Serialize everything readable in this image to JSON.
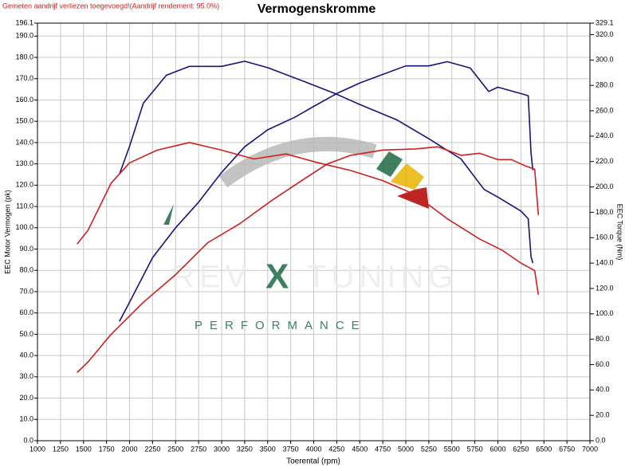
{
  "chart_data": {
    "type": "line",
    "title": "Vermogenskromme",
    "subtitle": "Gemeten aandrijf verliezen toegevoegd!(Aandrijf rendement: 95.0%)",
    "xlabel": "Toerental (rpm)",
    "ylabel": "EEC Motor Vermogen (pk)",
    "y2label": "EEC Torque (Nm)",
    "watermark": {
      "brand_left": "REV",
      "brand_mid": "X",
      "brand_right": "TUNING",
      "tagline": "PERFORMANCE"
    },
    "grid": true,
    "xlim": [
      1000,
      7000
    ],
    "xticks": [
      1000,
      1250,
      1500,
      1750,
      2000,
      2250,
      2500,
      2750,
      3000,
      3250,
      3500,
      3750,
      4000,
      4250,
      4500,
      4750,
      5000,
      5250,
      5500,
      5750,
      6000,
      6250,
      6500,
      6750,
      7000
    ],
    "ylim": [
      0,
      196.1
    ],
    "yticks": [
      {
        "value": 0,
        "label": "0.0"
      },
      {
        "value": 10,
        "label": "10.0"
      },
      {
        "value": 20,
        "label": "20.0"
      },
      {
        "value": 30,
        "label": "30.0"
      },
      {
        "value": 40,
        "label": "40.0"
      },
      {
        "value": 50,
        "label": "50.0"
      },
      {
        "value": 60,
        "label": "60.0"
      },
      {
        "value": 70,
        "label": "70.0"
      },
      {
        "value": 80,
        "label": "80.0"
      },
      {
        "value": 90,
        "label": "90.0"
      },
      {
        "value": 100,
        "label": "100.0"
      },
      {
        "value": 110,
        "label": "110.0"
      },
      {
        "value": 120,
        "label": "120.0"
      },
      {
        "value": 130,
        "label": "130.0"
      },
      {
        "value": 140,
        "label": "140.0"
      },
      {
        "value": 150,
        "label": "150.0"
      },
      {
        "value": 160,
        "label": "160.0"
      },
      {
        "value": 170,
        "label": "170.0"
      },
      {
        "value": 180,
        "label": "180.0"
      },
      {
        "value": 190,
        "label": "190.0"
      },
      196.1
    ],
    "y2lim": [
      0,
      329.1
    ],
    "y2ticks": [
      {
        "value": 0,
        "label": "0.0"
      },
      {
        "value": 20,
        "label": "20.0"
      },
      {
        "value": 40,
        "label": "40.0"
      },
      {
        "value": 60,
        "label": "60.0"
      },
      {
        "value": 80,
        "label": "80.0"
      },
      {
        "value": 100,
        "label": "100.0"
      },
      {
        "value": 120,
        "label": "120.0"
      },
      {
        "value": 140,
        "label": "140.0"
      },
      {
        "value": 160,
        "label": "160.0"
      },
      {
        "value": 180,
        "label": "180.0"
      },
      {
        "value": 200,
        "label": "200.0"
      },
      {
        "value": 220,
        "label": "220.0"
      },
      {
        "value": 240,
        "label": "240.0"
      },
      {
        "value": 260,
        "label": "260.0"
      },
      {
        "value": 280,
        "label": "280.0"
      },
      {
        "value": 300,
        "label": "300.0"
      },
      {
        "value": 320,
        "label": "320.0"
      },
      329.1
    ],
    "series": [
      {
        "color": "#14147a",
        "x": [
          1890,
          2000,
          2250,
          2500,
          2750,
          3000,
          3250,
          3500,
          3800,
          4000,
          4250,
          4500,
          4750,
          5000,
          5250,
          5450,
          5700,
          5900,
          6000,
          6250,
          6330,
          6360,
          6380
        ],
        "values": [
          56,
          65,
          86,
          100,
          112,
          126,
          138,
          146,
          152,
          157,
          163,
          168,
          172,
          176,
          176,
          178,
          175,
          164,
          166,
          163,
          162,
          135,
          127
        ]
      },
      {
        "color": "#14147a",
        "axis": "y2",
        "x": [
          1890,
          2000,
          2150,
          2400,
          2650,
          3000,
          3250,
          3500,
          3900,
          4250,
          4500,
          4900,
          5250,
          5600,
          5850,
          6000,
          6250,
          6330,
          6360,
          6380
        ],
        "values": [
          210,
          232,
          266,
          288,
          295,
          295,
          299,
          294,
          283,
          273,
          265,
          253,
          238,
          222,
          198,
          192,
          181,
          175,
          145,
          140
        ]
      },
      {
        "color": "#cc1f1f",
        "x": [
          1430,
          1550,
          1800,
          2150,
          2500,
          2850,
          3200,
          3550,
          3900,
          4150,
          4400,
          4750,
          5100,
          5350,
          5600,
          5800,
          6000,
          6150,
          6300,
          6400,
          6440
        ],
        "values": [
          32,
          37,
          50,
          65,
          78,
          93,
          102,
          113,
          123,
          130,
          134,
          136.5,
          137,
          138,
          134,
          135,
          132,
          132,
          129,
          127.5,
          106
        ]
      },
      {
        "color": "#cc1f1f",
        "axis": "y2",
        "x": [
          1430,
          1550,
          1800,
          2000,
          2300,
          2650,
          3000,
          3350,
          3700,
          4050,
          4400,
          4750,
          5100,
          5450,
          5800,
          6050,
          6250,
          6400,
          6440
        ],
        "values": [
          155,
          166,
          203,
          219,
          229,
          235,
          229,
          222,
          226,
          219,
          213,
          205,
          194,
          175,
          159,
          150,
          140,
          134,
          115
        ]
      }
    ]
  }
}
